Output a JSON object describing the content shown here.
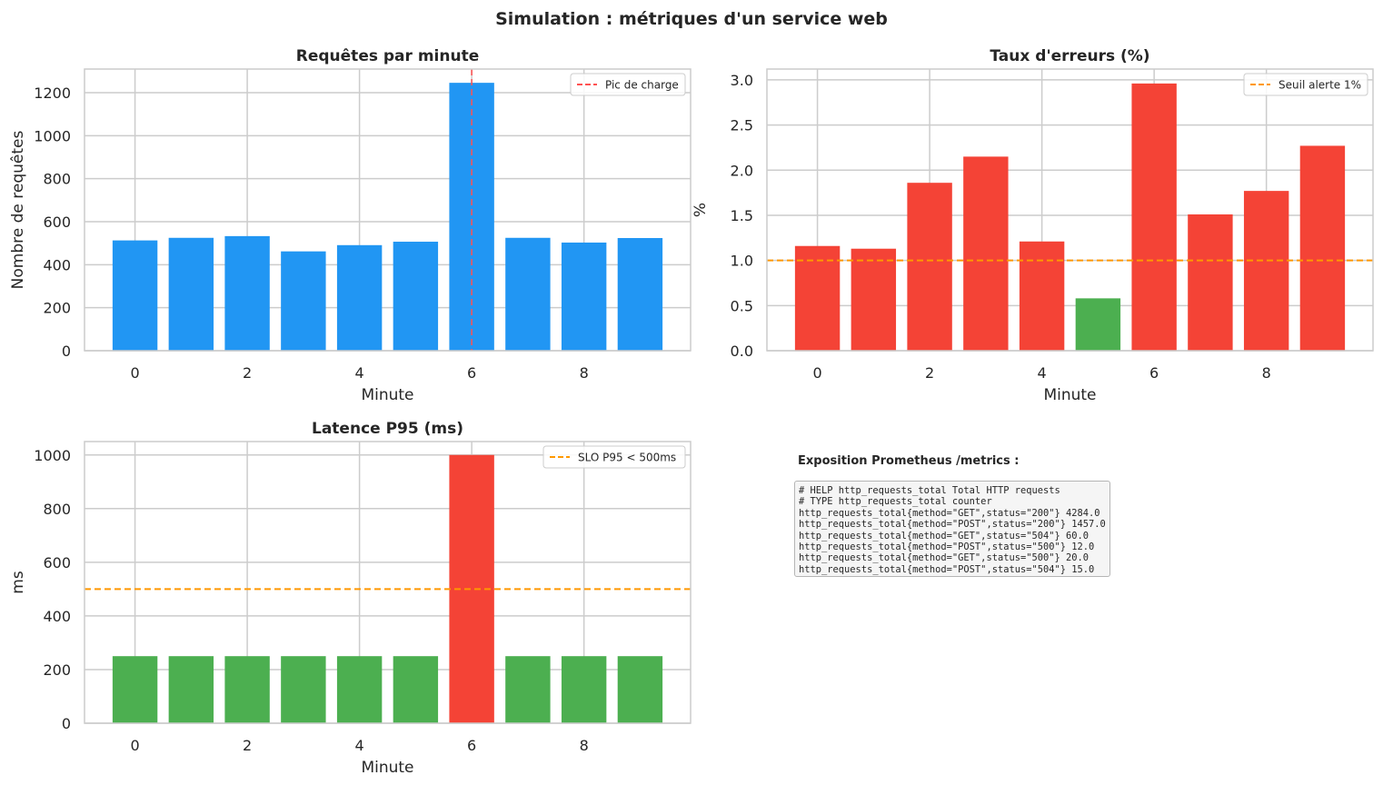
{
  "figure": {
    "title": "Simulation : métriques d'un service web"
  },
  "chart_data": [
    {
      "id": "requests",
      "type": "bar",
      "title": "Requêtes par minute",
      "xlabel": "Minute",
      "ylabel": "Nombre de requêtes",
      "x": [
        0,
        1,
        2,
        3,
        4,
        5,
        6,
        7,
        8,
        9
      ],
      "values": [
        513,
        525,
        533,
        462,
        491,
        507,
        1246,
        525,
        503,
        524
      ],
      "bar_colors": [
        "#2196F3",
        "#2196F3",
        "#2196F3",
        "#2196F3",
        "#2196F3",
        "#2196F3",
        "#2196F3",
        "#2196F3",
        "#2196F3",
        "#2196F3"
      ],
      "xlim": [
        -0.9,
        9.9
      ],
      "ylim": [
        0,
        1310
      ],
      "xticks": [
        0,
        2,
        4,
        6,
        8
      ],
      "yticks": [
        0,
        200,
        400,
        600,
        800,
        1000,
        1200
      ],
      "grid": true,
      "reference_line": {
        "orientation": "vertical",
        "value": 6,
        "label": "Pic de charge",
        "color": "#FF5252",
        "style": "dashed"
      },
      "legend": {
        "position": "top-right",
        "entries": [
          "Pic de charge"
        ]
      }
    },
    {
      "id": "errors",
      "type": "bar",
      "title": "Taux d'erreurs (%)",
      "xlabel": "Minute",
      "ylabel": "%",
      "x": [
        0,
        1,
        2,
        3,
        4,
        5,
        6,
        7,
        8,
        9
      ],
      "values": [
        1.16,
        1.13,
        1.86,
        2.15,
        1.21,
        0.58,
        2.96,
        1.51,
        1.77,
        2.27
      ],
      "bar_colors": [
        "#F44336",
        "#F44336",
        "#F44336",
        "#F44336",
        "#F44336",
        "#4CAF50",
        "#F44336",
        "#F44336",
        "#F44336",
        "#F44336"
      ],
      "xlim": [
        -0.9,
        9.9
      ],
      "ylim": [
        0,
        3.12
      ],
      "xticks": [
        0,
        2,
        4,
        6,
        8
      ],
      "yticks": [
        0.0,
        0.5,
        1.0,
        1.5,
        2.0,
        2.5,
        3.0
      ],
      "ytick_labels": [
        "0.0",
        "0.5",
        "1.0",
        "1.5",
        "2.0",
        "2.5",
        "3.0"
      ],
      "grid": true,
      "reference_line": {
        "orientation": "horizontal",
        "value": 1.0,
        "label": "Seuil alerte 1%",
        "color": "#FF9800",
        "style": "dashed"
      },
      "legend": {
        "position": "top-right",
        "entries": [
          "Seuil alerte 1%"
        ]
      }
    },
    {
      "id": "latency",
      "type": "bar",
      "title": "Latence P95 (ms)",
      "xlabel": "Minute",
      "ylabel": "ms",
      "x": [
        0,
        1,
        2,
        3,
        4,
        5,
        6,
        7,
        8,
        9
      ],
      "values": [
        250,
        250,
        250,
        250,
        250,
        250,
        1000,
        250,
        250,
        250
      ],
      "bar_colors": [
        "#4CAF50",
        "#4CAF50",
        "#4CAF50",
        "#4CAF50",
        "#4CAF50",
        "#4CAF50",
        "#F44336",
        "#4CAF50",
        "#4CAF50",
        "#4CAF50"
      ],
      "xlim": [
        -0.9,
        9.9
      ],
      "ylim": [
        0,
        1050
      ],
      "xticks": [
        0,
        2,
        4,
        6,
        8
      ],
      "yticks": [
        0,
        200,
        400,
        600,
        800,
        1000
      ],
      "grid": true,
      "reference_line": {
        "orientation": "horizontal",
        "value": 500,
        "label": "SLO P95 < 500ms",
        "color": "#FF9800",
        "style": "dashed"
      },
      "legend": {
        "position": "top-right",
        "entries": [
          "SLO P95 < 500ms"
        ]
      }
    }
  ],
  "prometheus": {
    "title": "Exposition Prometheus /metrics :",
    "lines": [
      "# HELP http_requests_total Total HTTP requests",
      "# TYPE http_requests_total counter",
      "http_requests_total{method=\"GET\",status=\"200\"} 4284.0",
      "http_requests_total{method=\"POST\",status=\"200\"} 1457.0",
      "http_requests_total{method=\"GET\",status=\"504\"} 60.0",
      "http_requests_total{method=\"POST\",status=\"500\"} 12.0",
      "http_requests_total{method=\"GET\",status=\"500\"} 20.0",
      "http_requests_total{method=\"POST\",status=\"504\"} 15.0"
    ]
  }
}
